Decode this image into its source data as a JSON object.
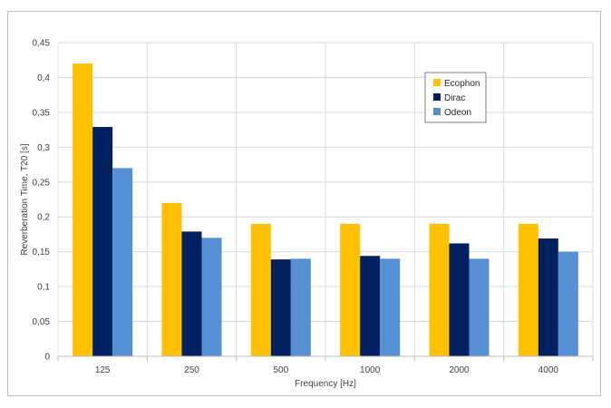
{
  "chart_data": {
    "type": "bar",
    "title": "",
    "xlabel": "Frequency [Hz]",
    "ylabel": "Reverberation Time, T20 [s]",
    "categories": [
      "125",
      "250",
      "500",
      "1000",
      "2000",
      "4000"
    ],
    "ylim": [
      0,
      0.45
    ],
    "yticks": [
      0,
      0.05,
      0.1,
      0.15,
      0.2,
      0.25,
      0.3,
      0.35,
      0.4,
      0.45
    ],
    "ytick_labels": [
      "0",
      "0,05",
      "0,1",
      "0,15",
      "0,2",
      "0,25",
      "0,3",
      "0,35",
      "0,4",
      "0,45"
    ],
    "grid": true,
    "legend_position": "upper-right-inside",
    "series": [
      {
        "name": "Ecophon",
        "color": "#FFC000",
        "values": [
          0.42,
          0.22,
          0.19,
          0.19,
          0.19,
          0.19
        ]
      },
      {
        "name": "Dirac",
        "color": "#002060",
        "values": [
          0.329,
          0.179,
          0.139,
          0.144,
          0.162,
          0.169
        ]
      },
      {
        "name": "Odeon",
        "color": "#5590D5",
        "values": [
          0.27,
          0.17,
          0.14,
          0.14,
          0.14,
          0.15
        ]
      }
    ]
  }
}
